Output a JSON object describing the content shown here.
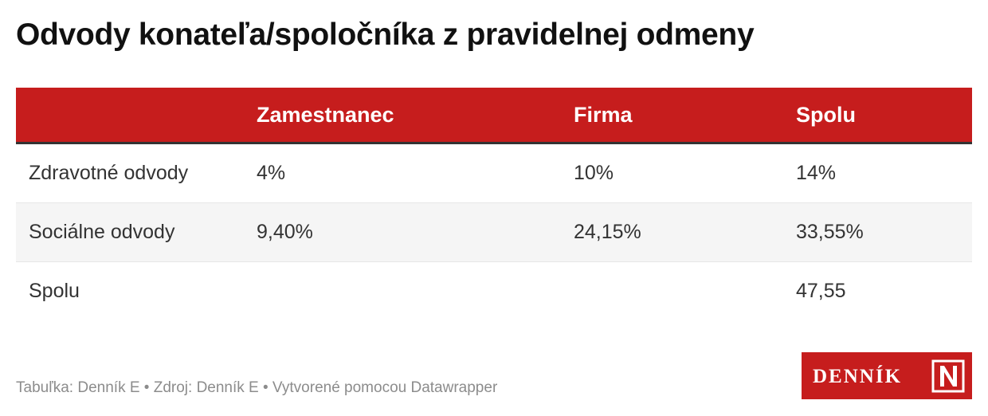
{
  "title": "Odvody konateľa/spoločníka z pravidelnej odmeny",
  "table": {
    "columns": [
      "",
      "Zamestnanec",
      "Firma",
      "Spolu"
    ],
    "rows": [
      [
        "Zdravotné odvody",
        "4%",
        "10%",
        "14%"
      ],
      [
        "Sociálne odvody",
        "9,40%",
        "24,15%",
        "33,55%"
      ],
      [
        "Spolu",
        "",
        "",
        "47,55"
      ]
    ]
  },
  "footer": {
    "text": "Tabuľka: Denník E • Zdroj: Denník E • Vytvorené pomocou Datawrapper"
  },
  "logo": {
    "text": "DENNÍK",
    "mark": "N"
  },
  "colors": {
    "header_bg": "#c61d1d",
    "header_text": "#ffffff",
    "row_alt_bg": "#f5f5f5",
    "footer_text": "#8c8c8c"
  }
}
